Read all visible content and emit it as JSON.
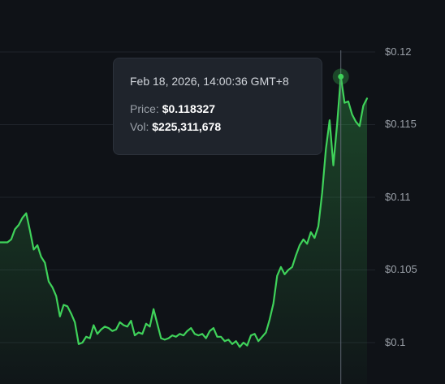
{
  "chart_data": {
    "type": "area",
    "y_ticks": [
      "$0.12",
      "$0.115",
      "$0.11",
      "$0.105",
      "$0.1"
    ],
    "ylim": [
      0.0983,
      0.1215
    ],
    "grid": true,
    "series": [
      {
        "values": [
          0.1069,
          0.1069,
          0.1069,
          0.1071,
          0.1078,
          0.1081,
          0.1086,
          0.1089,
          0.1077,
          0.1064,
          0.1067,
          0.1059,
          0.1055,
          0.1042,
          0.1038,
          0.1032,
          0.1018,
          0.1026,
          0.1025,
          0.102,
          0.1014,
          0.0999,
          0.1,
          0.1004,
          0.1003,
          0.1012,
          0.1006,
          0.1009,
          0.1011,
          0.101,
          0.1008,
          0.1009,
          0.1014,
          0.1012,
          0.1011,
          0.1015,
          0.1005,
          0.1007,
          0.1006,
          0.1013,
          0.1011,
          0.1023,
          0.1013,
          0.1003,
          0.1002,
          0.1003,
          0.1005,
          0.1004,
          0.1006,
          0.1005,
          0.1008,
          0.101,
          0.1006,
          0.1005,
          0.1006,
          0.1003,
          0.1008,
          0.101,
          0.1004,
          0.1004,
          0.1001,
          0.1002,
          0.0999,
          0.1001,
          0.0997,
          0.1,
          0.0998,
          0.1005,
          0.1006,
          0.1001,
          0.1004,
          0.1007,
          0.1016,
          0.1027,
          0.1046,
          0.1052,
          0.1047,
          0.105,
          0.1052,
          0.106,
          0.1067,
          0.1071,
          0.1068,
          0.1076,
          0.1072,
          0.108,
          0.1103,
          0.1133,
          0.1153,
          0.1122,
          0.115,
          0.1183,
          0.1165,
          0.1166,
          0.1157,
          0.1152,
          0.1149,
          0.1163,
          0.1168
        ],
        "color": "#3fd25a"
      }
    ],
    "hover": {
      "index": 91,
      "value": 0.118327
    }
  },
  "tooltip": {
    "datetime": "Feb 18, 2026, 14:00:36 GMT+8",
    "price_label": "Price:",
    "price_value": "$0.118327",
    "vol_label": "Vol:",
    "vol_value": "$225,311,678"
  },
  "colors": {
    "background": "#0f1217",
    "line": "#3fd25a",
    "grid": "#1f242b",
    "crosshair": "#5d6470",
    "tooltip_bg": "#1f242c"
  }
}
